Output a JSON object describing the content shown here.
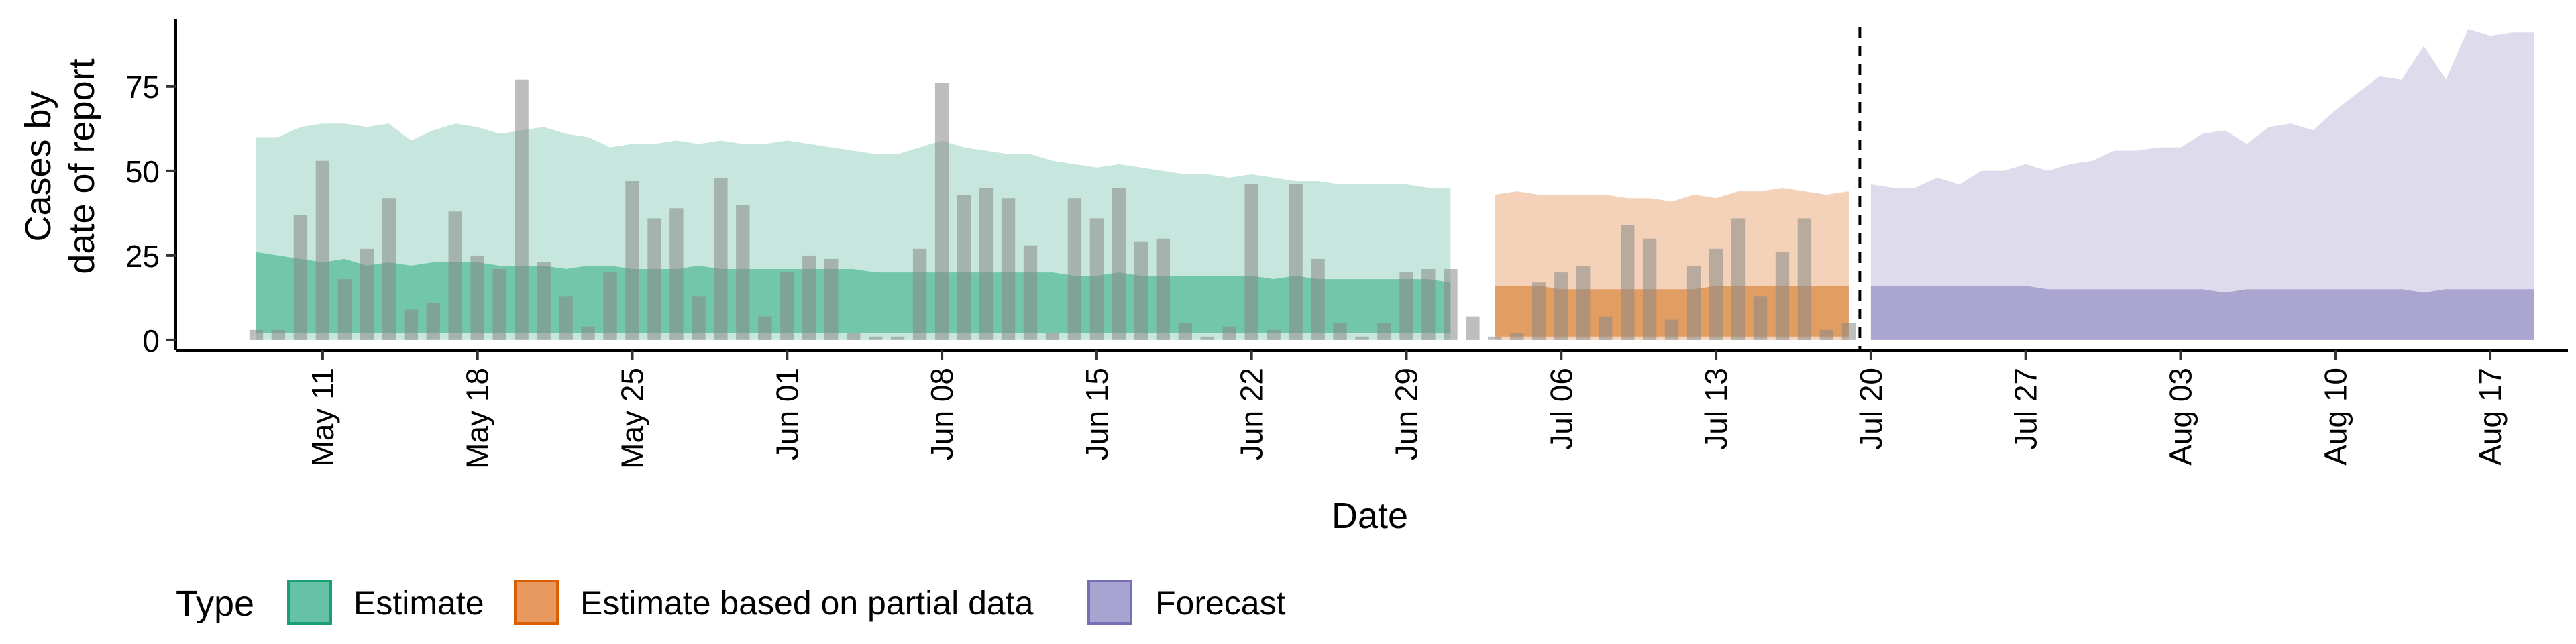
{
  "chart_data": {
    "type": "bar",
    "title": "",
    "xlabel": "Date",
    "ylabel_lines": [
      "Cases by",
      "date of report"
    ],
    "ylim": [
      -3,
      95
    ],
    "yticks": [
      0,
      25,
      50,
      75
    ],
    "ytick_labels": [
      "0",
      "25",
      "50",
      "75"
    ],
    "x_start": "2020-05-08",
    "x_end": "2020-08-19",
    "cutoff_date": "2020-07-19",
    "xticks": [
      {
        "date": "2020-05-11",
        "label": "May 11"
      },
      {
        "date": "2020-05-18",
        "label": "May 18"
      },
      {
        "date": "2020-05-25",
        "label": "May 25"
      },
      {
        "date": "2020-06-01",
        "label": "Jun 01"
      },
      {
        "date": "2020-06-08",
        "label": "Jun 08"
      },
      {
        "date": "2020-06-15",
        "label": "Jun 15"
      },
      {
        "date": "2020-06-22",
        "label": "Jun 22"
      },
      {
        "date": "2020-06-29",
        "label": "Jun 29"
      },
      {
        "date": "2020-07-06",
        "label": "Jul 06"
      },
      {
        "date": "2020-07-13",
        "label": "Jul 13"
      },
      {
        "date": "2020-07-20",
        "label": "Jul 20"
      },
      {
        "date": "2020-07-27",
        "label": "Jul 27"
      },
      {
        "date": "2020-08-03",
        "label": "Aug 03"
      },
      {
        "date": "2020-08-10",
        "label": "Aug 10"
      },
      {
        "date": "2020-08-17",
        "label": "Aug 17"
      }
    ],
    "legend": {
      "title": "Type",
      "position": "bottom",
      "items": [
        {
          "label": "Estimate",
          "fill": "#66c2a5",
          "stroke": "#1b9e77"
        },
        {
          "label": "Estimate based on partial data",
          "fill": "#e8995f",
          "stroke": "#d95f02"
        },
        {
          "label": "Forecast",
          "fill": "#a8a3d1",
          "stroke": "#7570b3"
        }
      ]
    },
    "bars": {
      "color": "#888888",
      "dates": [
        "2020-05-08",
        "2020-05-09",
        "2020-05-10",
        "2020-05-11",
        "2020-05-12",
        "2020-05-13",
        "2020-05-14",
        "2020-05-15",
        "2020-05-16",
        "2020-05-17",
        "2020-05-18",
        "2020-05-19",
        "2020-05-20",
        "2020-05-21",
        "2020-05-22",
        "2020-05-23",
        "2020-05-24",
        "2020-05-25",
        "2020-05-26",
        "2020-05-27",
        "2020-05-28",
        "2020-05-29",
        "2020-05-30",
        "2020-05-31",
        "2020-06-01",
        "2020-06-02",
        "2020-06-03",
        "2020-06-04",
        "2020-06-05",
        "2020-06-06",
        "2020-06-07",
        "2020-06-08",
        "2020-06-09",
        "2020-06-10",
        "2020-06-11",
        "2020-06-12",
        "2020-06-13",
        "2020-06-14",
        "2020-06-15",
        "2020-06-16",
        "2020-06-17",
        "2020-06-18",
        "2020-06-19",
        "2020-06-20",
        "2020-06-21",
        "2020-06-22",
        "2020-06-23",
        "2020-06-24",
        "2020-06-25",
        "2020-06-26",
        "2020-06-27",
        "2020-06-28",
        "2020-06-29",
        "2020-06-30",
        "2020-07-01",
        "2020-07-02",
        "2020-07-03",
        "2020-07-04",
        "2020-07-05",
        "2020-07-06",
        "2020-07-07",
        "2020-07-08",
        "2020-07-09",
        "2020-07-10",
        "2020-07-11",
        "2020-07-12",
        "2020-07-13",
        "2020-07-14",
        "2020-07-15",
        "2020-07-16",
        "2020-07-17",
        "2020-07-18",
        "2020-07-19"
      ],
      "values": [
        3,
        3,
        37,
        53,
        18,
        27,
        42,
        9,
        11,
        38,
        25,
        21,
        77,
        23,
        13,
        4,
        20,
        47,
        36,
        39,
        13,
        48,
        40,
        7,
        20,
        25,
        24,
        2,
        1,
        1,
        27,
        76,
        43,
        45,
        42,
        28,
        2,
        42,
        36,
        45,
        29,
        30,
        5,
        1,
        4,
        46,
        3,
        46,
        24,
        5,
        1,
        5,
        20,
        21,
        21,
        7,
        1,
        2,
        17,
        20,
        22,
        7,
        34,
        30,
        6,
        22,
        27,
        36,
        13,
        26,
        36,
        3,
        5
      ]
    },
    "series": [
      {
        "name": "Estimate",
        "start": "2020-05-08",
        "fill_outer": "#c4e6dc",
        "fill_inner": "#6ec4a7",
        "lower_90": [
          0,
          0,
          0,
          0,
          0,
          0,
          0,
          0,
          0,
          0,
          0,
          0,
          0,
          0,
          0,
          0,
          0,
          0,
          0,
          0,
          0,
          0,
          0,
          0,
          0,
          0,
          0,
          0,
          0,
          0,
          0,
          0,
          0,
          0,
          0,
          0,
          0,
          0,
          0,
          0,
          0,
          0,
          0,
          0,
          0,
          0,
          0,
          0,
          0,
          0,
          0,
          0,
          0,
          0,
          0
        ],
        "upper_90": [
          60,
          60,
          63,
          64,
          64,
          63,
          64,
          59,
          62,
          64,
          63,
          61,
          62,
          63,
          61,
          60,
          57,
          58,
          58,
          59,
          58,
          59,
          58,
          58,
          59,
          58,
          57,
          56,
          55,
          55,
          57,
          59,
          57,
          56,
          55,
          55,
          53,
          52,
          51,
          52,
          51,
          50,
          49,
          49,
          48,
          49,
          48,
          47,
          47,
          46,
          46,
          46,
          46,
          45,
          45
        ],
        "lower_50": [
          2,
          2,
          2,
          2,
          2,
          2,
          2,
          2,
          2,
          2,
          2,
          2,
          2,
          2,
          2,
          2,
          2,
          2,
          2,
          2,
          2,
          2,
          2,
          2,
          2,
          2,
          2,
          2,
          2,
          2,
          2,
          2,
          2,
          2,
          2,
          2,
          2,
          2,
          2,
          2,
          2,
          2,
          2,
          2,
          2,
          2,
          2,
          2,
          2,
          2,
          2,
          2,
          2,
          2,
          2
        ],
        "upper_50": [
          26,
          25,
          24,
          23,
          24,
          22,
          23,
          22,
          23,
          23,
          23,
          22,
          22,
          22,
          21,
          22,
          22,
          21,
          21,
          21,
          22,
          21,
          21,
          21,
          21,
          21,
          21,
          21,
          20,
          20,
          20,
          20,
          20,
          20,
          20,
          20,
          20,
          19,
          19,
          20,
          19,
          19,
          19,
          19,
          19,
          19,
          18,
          19,
          18,
          18,
          18,
          18,
          18,
          18,
          17
        ]
      },
      {
        "name": "Estimate based on partial data",
        "start": "2020-07-03",
        "fill_outer": "#f3d0b5",
        "fill_inner": "#e09a5e",
        "lower_90": [
          0,
          0,
          0,
          0,
          0,
          0,
          0,
          0,
          0,
          0,
          0,
          0,
          0,
          0,
          0,
          0,
          0
        ],
        "upper_90": [
          43,
          44,
          43,
          43,
          43,
          43,
          42,
          42,
          41,
          43,
          42,
          44,
          44,
          45,
          44,
          43,
          44
        ],
        "lower_50": [
          1,
          1,
          1,
          1,
          1,
          1,
          1,
          1,
          1,
          1,
          1,
          1,
          1,
          1,
          1,
          1,
          1
        ],
        "upper_50": [
          16,
          16,
          16,
          15,
          15,
          15,
          15,
          15,
          15,
          15,
          16,
          16,
          16,
          16,
          16,
          16,
          16
        ]
      },
      {
        "name": "Forecast",
        "start": "2020-07-20",
        "fill_outer": "#dcdaeb",
        "fill_inner": "#a6a2cf",
        "lower_90": [
          0,
          0,
          0,
          0,
          0,
          0,
          0,
          0,
          0,
          0,
          0,
          0,
          0,
          0,
          0,
          0,
          0,
          0,
          0,
          0,
          0,
          0,
          0,
          0,
          0,
          0,
          0,
          0,
          0,
          0,
          0
        ],
        "upper_90": [
          46,
          45,
          45,
          48,
          46,
          50,
          50,
          52,
          50,
          52,
          53,
          56,
          56,
          57,
          57,
          61,
          62,
          58,
          63,
          64,
          62,
          68,
          73,
          78,
          77,
          87,
          77,
          92,
          90,
          91,
          91
        ],
        "lower_50": [
          0,
          0,
          0,
          0,
          0,
          0,
          0,
          0,
          0,
          0,
          0,
          0,
          0,
          0,
          0,
          0,
          0,
          0,
          0,
          0,
          0,
          0,
          0,
          0,
          0,
          0,
          0,
          0,
          0,
          0,
          0
        ],
        "upper_50": [
          16,
          16,
          16,
          16,
          16,
          16,
          16,
          16,
          15,
          15,
          15,
          15,
          15,
          15,
          15,
          15,
          14,
          15,
          15,
          15,
          15,
          15,
          15,
          15,
          15,
          14,
          15,
          15,
          15,
          15,
          15
        ]
      }
    ]
  }
}
